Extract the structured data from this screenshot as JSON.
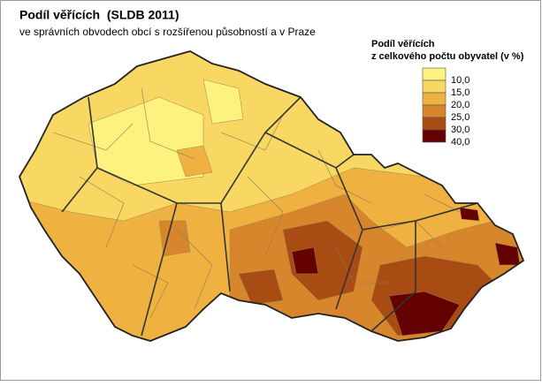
{
  "map": {
    "title": "Podíl věřících  (SLDB 2011)",
    "subtitle": "ve správních obvodech obcí s rozšířenou působností a v Praze",
    "legend": {
      "title": [
        "Podíl věřících",
        "z celkového počtu obyvatel (v %)"
      ],
      "items": [
        {
          "label": "10,0",
          "color": "#fdf27e"
        },
        {
          "label": "15,0",
          "color": "#f8d763"
        },
        {
          "label": "20,0",
          "color": "#efb241"
        },
        {
          "label": "25,0",
          "color": "#d8862b"
        },
        {
          "label": "30,0",
          "color": "#a84c14"
        },
        {
          "label": "40,0",
          "color": "#640202"
        }
      ]
    }
  }
}
